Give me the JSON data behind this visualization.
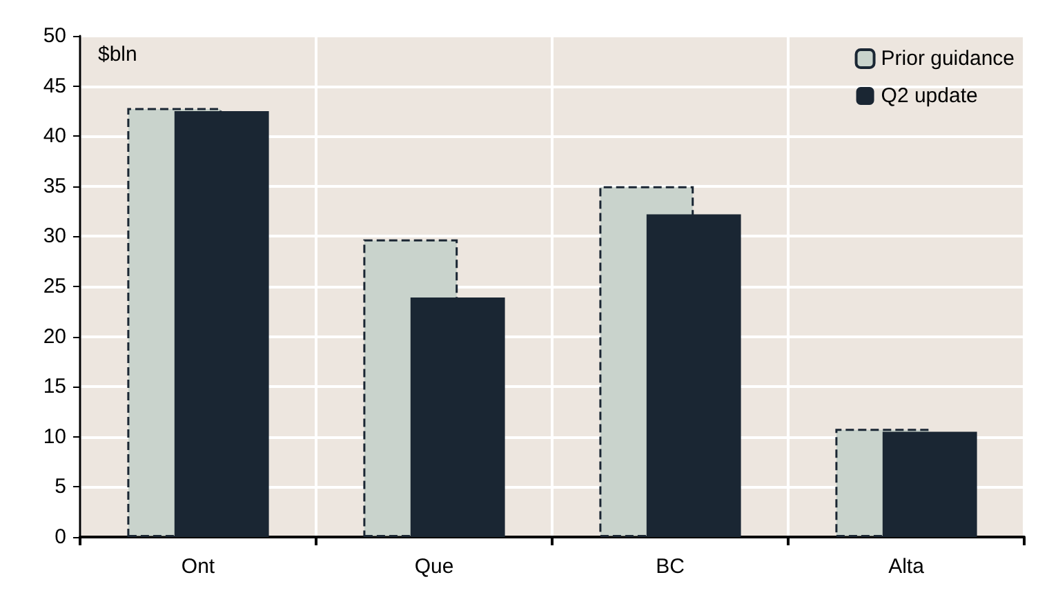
{
  "chart_data": {
    "type": "bar",
    "ylabel": "$bln",
    "categories": [
      "Ont",
      "Que",
      "BC",
      "Alta"
    ],
    "series": [
      {
        "name": "Prior guidance",
        "color": "#c9d3cc",
        "line_style": "dashed",
        "values": [
          42.8,
          29.7,
          35.0,
          10.8
        ]
      },
      {
        "name": "Q2 update",
        "color": "#1a2633",
        "values": [
          42.5,
          23.9,
          32.2,
          10.5
        ]
      }
    ],
    "ylim": [
      0,
      50
    ],
    "yticks": [
      0,
      5,
      10,
      15,
      20,
      25,
      30,
      35,
      40,
      45,
      50
    ],
    "grid": true,
    "legend": "top right"
  }
}
